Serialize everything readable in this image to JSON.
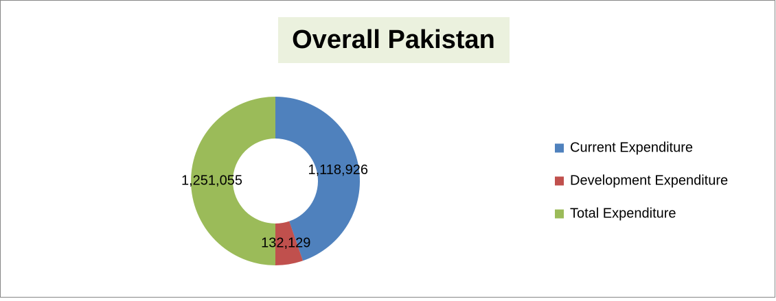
{
  "chart_data": {
    "type": "donut",
    "title": "Overall Pakistan",
    "categories": [
      "Current Expenditure",
      "Development Expenditure",
      "Total Expenditure"
    ],
    "values": [
      1118926,
      132129,
      1251055
    ],
    "value_labels": [
      "1,118,926",
      "132,129",
      "1,251,055"
    ],
    "colors": [
      "#4f81bd",
      "#c0504d",
      "#9bbb59"
    ],
    "legend": "right"
  }
}
